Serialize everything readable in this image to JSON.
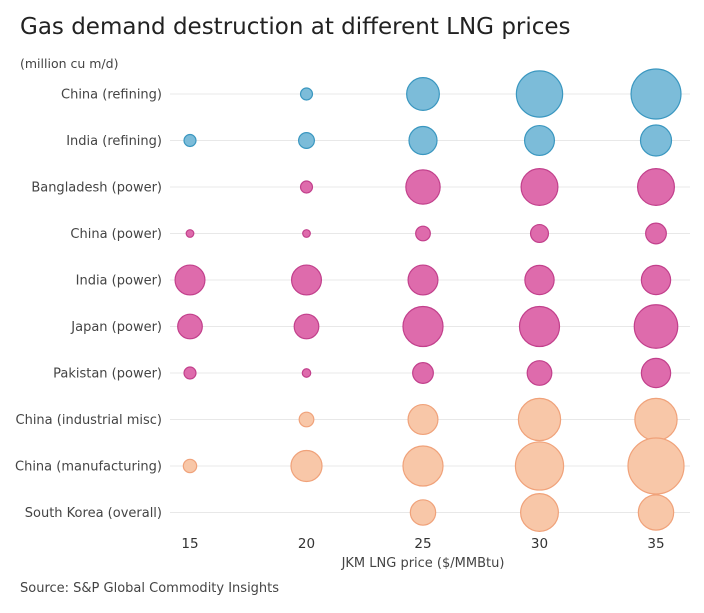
{
  "title": "Gas demand destruction at different LNG prices",
  "unit_label": "(million cu m/d)",
  "source": "Source: S&P Global Commodity Insights",
  "colors": {
    "refining": "#7cbcd9",
    "refining_stroke": "#3a97c0",
    "power": "#de6bac",
    "power_stroke": "#c2408c",
    "industrial": "#f8c7a8",
    "industrial_stroke": "#f0a27a",
    "gridline": "#e8e8e8"
  },
  "chart_data": {
    "type": "scatter",
    "subtype": "bubble",
    "title": "Gas demand destruction at different LNG prices",
    "xlabel": "JKM LNG price ($/MMBtu)",
    "ylabel": "",
    "x": [
      15,
      20,
      25,
      30,
      35
    ],
    "x_tick_labels": [
      "15",
      "20",
      "25",
      "30",
      "35"
    ],
    "categories": [
      "China (refining)",
      "India (refining)",
      "Bangladesh (power)",
      "China (power)",
      "India (power)",
      "Japan (power)",
      "Pakistan (power)",
      "China (industrial misc)",
      "China (manufacturing)",
      "South Korea (overall)"
    ],
    "series": [
      {
        "group": "refining",
        "values": [
          0,
          4,
          30,
          60,
          70
        ]
      },
      {
        "group": "refining",
        "values": [
          4,
          7,
          22,
          25,
          27
        ]
      },
      {
        "group": "power",
        "values": [
          0,
          4,
          33,
          38,
          38
        ]
      },
      {
        "group": "power",
        "values": [
          1,
          1,
          6,
          9,
          12
        ]
      },
      {
        "group": "power",
        "values": [
          25,
          25,
          25,
          24,
          24
        ]
      },
      {
        "group": "power",
        "values": [
          17,
          17,
          45,
          45,
          53
        ]
      },
      {
        "group": "power",
        "values": [
          4,
          2,
          12,
          17,
          24
        ]
      },
      {
        "group": "industrial",
        "values": [
          0,
          6,
          25,
          50,
          50
        ]
      },
      {
        "group": "industrial",
        "values": [
          5,
          27,
          45,
          65,
          88
        ]
      },
      {
        "group": "industrial",
        "values": [
          0,
          0,
          18,
          40,
          35
        ]
      }
    ],
    "size_unit": "million cu m/d",
    "grid": "horizontal"
  }
}
